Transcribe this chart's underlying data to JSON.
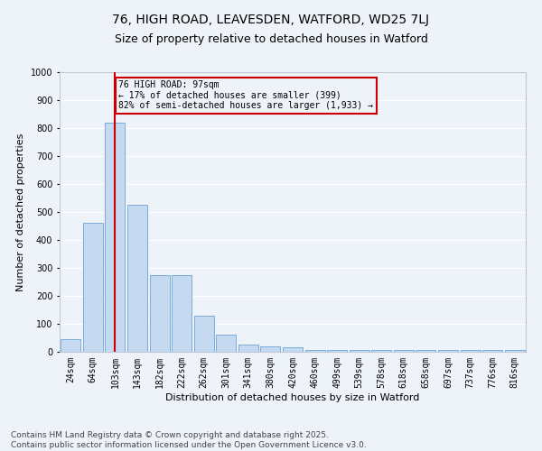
{
  "title_line1": "76, HIGH ROAD, LEAVESDEN, WATFORD, WD25 7LJ",
  "title_line2": "Size of property relative to detached houses in Watford",
  "xlabel": "Distribution of detached houses by size in Watford",
  "ylabel": "Number of detached properties",
  "bar_color": "#c5d9f0",
  "bar_edge_color": "#7aaddb",
  "background_color": "#eef2f9",
  "grid_color": "#ffffff",
  "categories": [
    "24sqm",
    "64sqm",
    "103sqm",
    "143sqm",
    "182sqm",
    "222sqm",
    "262sqm",
    "301sqm",
    "341sqm",
    "380sqm",
    "420sqm",
    "460sqm",
    "499sqm",
    "539sqm",
    "578sqm",
    "618sqm",
    "658sqm",
    "697sqm",
    "737sqm",
    "776sqm",
    "816sqm"
  ],
  "values": [
    45,
    460,
    820,
    525,
    275,
    275,
    130,
    60,
    25,
    20,
    15,
    5,
    5,
    5,
    5,
    5,
    5,
    5,
    5,
    5,
    5
  ],
  "property_bin_index": 2,
  "annotation_line1": "76 HIGH ROAD: 97sqm",
  "annotation_line2": "← 17% of detached houses are smaller (399)",
  "annotation_line3": "82% of semi-detached houses are larger (1,933) →",
  "vline_color": "#cc0000",
  "annotation_box_color": "#cc0000",
  "ylim": [
    0,
    1000
  ],
  "yticks": [
    0,
    100,
    200,
    300,
    400,
    500,
    600,
    700,
    800,
    900,
    1000
  ],
  "xlabel_fontsize": 8,
  "ylabel_fontsize": 8,
  "tick_fontsize": 7,
  "footer_line1": "Contains HM Land Registry data © Crown copyright and database right 2025.",
  "footer_line2": "Contains public sector information licensed under the Open Government Licence v3.0.",
  "footer_fontsize": 6.5
}
